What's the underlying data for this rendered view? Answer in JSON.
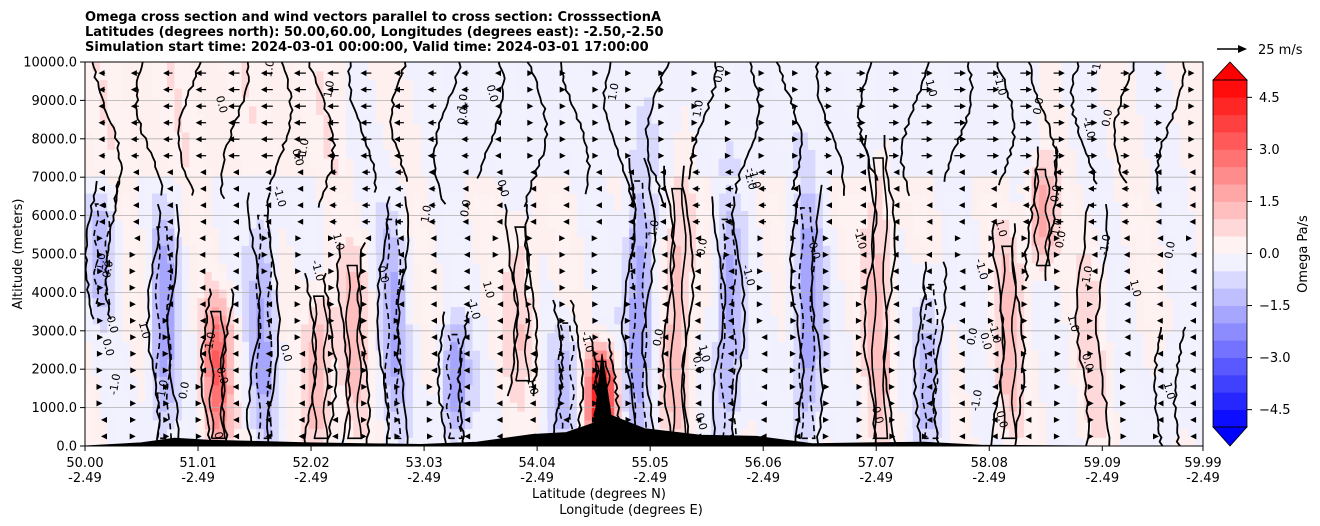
{
  "chart_data": {
    "type": "heatmap",
    "title_lines": [
      "Omega cross section and wind vectors parallel to cross section: CrosssectionA",
      "Latitudes (degrees north): 50.00,60.00, Longitudes (degrees east): -2.50,-2.50",
      "Simulation start time: 2024-03-01 00:00:00, Valid time: 2024-03-01 17:00:00"
    ],
    "xlabel": "Latitude (degrees N)",
    "xlabel2": "Longitude (degrees E)",
    "ylabel": "Altitude (meters)",
    "xlim": [
      50.0,
      59.99
    ],
    "ylim": [
      0,
      10000
    ],
    "x_ticks": [
      {
        "lat": "50.00",
        "lon": "-2.49",
        "v": 50.0
      },
      {
        "lat": "51.01",
        "lon": "-2.49",
        "v": 51.01
      },
      {
        "lat": "52.02",
        "lon": "-2.49",
        "v": 52.02
      },
      {
        "lat": "53.03",
        "lon": "-2.49",
        "v": 53.03
      },
      {
        "lat": "54.04",
        "lon": "-2.49",
        "v": 54.04
      },
      {
        "lat": "55.05",
        "lon": "-2.49",
        "v": 55.05
      },
      {
        "lat": "56.06",
        "lon": "-2.49",
        "v": 56.06
      },
      {
        "lat": "57.07",
        "lon": "-2.49",
        "v": 57.07
      },
      {
        "lat": "58.08",
        "lon": "-2.49",
        "v": 58.08
      },
      {
        "lat": "59.09",
        "lon": "-2.49",
        "v": 59.09
      },
      {
        "lat": "59.99",
        "lon": "-2.49",
        "v": 59.99
      }
    ],
    "y_ticks": [
      {
        "label": "0.0",
        "v": 0
      },
      {
        "label": "1000.0",
        "v": 1000
      },
      {
        "label": "2000.0",
        "v": 2000
      },
      {
        "label": "3000.0",
        "v": 3000
      },
      {
        "label": "4000.0",
        "v": 4000
      },
      {
        "label": "5000.0",
        "v": 5000
      },
      {
        "label": "6000.0",
        "v": 6000
      },
      {
        "label": "7000.0",
        "v": 7000
      },
      {
        "label": "8000.0",
        "v": 8000
      },
      {
        "label": "9000.0",
        "v": 9000
      },
      {
        "label": "10000.0",
        "v": 10000
      }
    ],
    "grid": "horizontal",
    "colorbar": {
      "label": "Omega Pa/s",
      "range": [
        -5,
        5
      ],
      "extend": "both",
      "ticks": [
        {
          "label": "4.5",
          "v": 4.5
        },
        {
          "label": "3.0",
          "v": 3.0
        },
        {
          "label": "1.5",
          "v": 1.5
        },
        {
          "label": "0.0",
          "v": 0.0
        },
        {
          "label": "−1.5",
          "v": -1.5
        },
        {
          "label": "−3.0",
          "v": -3.0
        },
        {
          "label": "−4.5",
          "v": -4.5
        }
      ]
    },
    "quiver_key": {
      "label": "25 m/s",
      "speed": 25
    },
    "contour_levels": [
      -1.0,
      0.0,
      1.0
    ],
    "contour_labels": [
      "0.0",
      "-1.0",
      "1.0"
    ],
    "omega_features": [
      {
        "lat": 50.15,
        "alt_low": 3500,
        "alt_high": 6600,
        "omega": -1.3
      },
      {
        "lat": 50.7,
        "alt_low": 0,
        "alt_high": 6000,
        "omega": -1.8
      },
      {
        "lat": 51.18,
        "alt_low": 0,
        "alt_high": 3800,
        "omega": 2.8
      },
      {
        "lat": 51.6,
        "alt_low": 0,
        "alt_high": 6300,
        "omega": -1.5
      },
      {
        "lat": 52.1,
        "alt_low": 0,
        "alt_high": 4200,
        "omega": 1.6
      },
      {
        "lat": 52.4,
        "alt_low": 0,
        "alt_high": 5000,
        "omega": 1.2
      },
      {
        "lat": 52.75,
        "alt_low": 0,
        "alt_high": 6200,
        "omega": -1.4
      },
      {
        "lat": 53.3,
        "alt_low": 0,
        "alt_high": 3200,
        "omega": -2.0
      },
      {
        "lat": 53.9,
        "alt_low": 1500,
        "alt_high": 6000,
        "omega": 1.0
      },
      {
        "lat": 54.3,
        "alt_low": 0,
        "alt_high": 3500,
        "omega": -1.2
      },
      {
        "lat": 54.62,
        "alt_low": 0,
        "alt_high": 2500,
        "omega": 5.0
      },
      {
        "lat": 54.95,
        "alt_low": 0,
        "alt_high": 7200,
        "omega": -2.0
      },
      {
        "lat": 55.3,
        "alt_low": 0,
        "alt_high": 7000,
        "omega": 1.5
      },
      {
        "lat": 55.75,
        "alt_low": 0,
        "alt_high": 6200,
        "omega": -1.8
      },
      {
        "lat": 56.45,
        "alt_low": 0,
        "alt_high": 6500,
        "omega": -2.0
      },
      {
        "lat": 57.1,
        "alt_low": 0,
        "alt_high": 7800,
        "omega": 1.2
      },
      {
        "lat": 57.55,
        "alt_low": 0,
        "alt_high": 4500,
        "omega": -1.3
      },
      {
        "lat": 58.25,
        "alt_low": 0,
        "alt_high": 5500,
        "omega": 1.2
      },
      {
        "lat": 58.55,
        "alt_low": 4500,
        "alt_high": 7500,
        "omega": 1.8
      },
      {
        "lat": 59.0,
        "alt_low": 0,
        "alt_high": 6000,
        "omega": 0.6
      },
      {
        "lat": 59.7,
        "alt_low": 0,
        "alt_high": 2800,
        "omega": -0.8
      }
    ],
    "terrain": [
      {
        "lat": 50.0,
        "alt": 0
      },
      {
        "lat": 50.5,
        "alt": 80
      },
      {
        "lat": 50.8,
        "alt": 200
      },
      {
        "lat": 51.1,
        "alt": 150
      },
      {
        "lat": 51.5,
        "alt": 120
      },
      {
        "lat": 52.0,
        "alt": 80
      },
      {
        "lat": 52.5,
        "alt": 60
      },
      {
        "lat": 53.0,
        "alt": 40
      },
      {
        "lat": 53.5,
        "alt": 100
      },
      {
        "lat": 54.0,
        "alt": 300
      },
      {
        "lat": 54.3,
        "alt": 350
      },
      {
        "lat": 54.55,
        "alt": 600
      },
      {
        "lat": 54.62,
        "alt": 2400
      },
      {
        "lat": 54.7,
        "alt": 800
      },
      {
        "lat": 55.0,
        "alt": 450
      },
      {
        "lat": 55.5,
        "alt": 280
      },
      {
        "lat": 56.0,
        "alt": 250
      },
      {
        "lat": 56.5,
        "alt": 60
      },
      {
        "lat": 57.0,
        "alt": 80
      },
      {
        "lat": 57.5,
        "alt": 100
      },
      {
        "lat": 58.0,
        "alt": 20
      },
      {
        "lat": 59.0,
        "alt": 0
      },
      {
        "lat": 59.99,
        "alt": 0
      }
    ]
  }
}
